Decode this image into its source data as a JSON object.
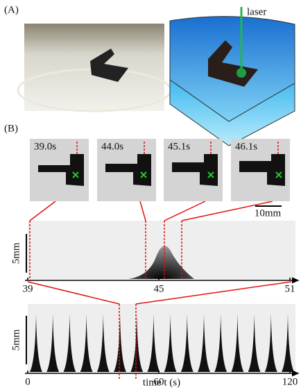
{
  "panel_a": {
    "label": "(A)",
    "laser_label": "laser"
  },
  "panel_b": {
    "label": "(B)",
    "frames": [
      {
        "time": "39.0s"
      },
      {
        "time": "44.0s"
      },
      {
        "time": "45.1s"
      },
      {
        "time": "46.1s"
      }
    ],
    "scale_bar": "10mm",
    "zoom": {
      "y_label": "5mm",
      "xlim": [
        39,
        51
      ],
      "xticks": [
        39,
        45,
        51
      ]
    },
    "full": {
      "y_label": "5mm",
      "xlim": [
        0,
        120
      ],
      "xticks": [
        0,
        60,
        120
      ],
      "x_label": "time t (s)"
    }
  }
}
